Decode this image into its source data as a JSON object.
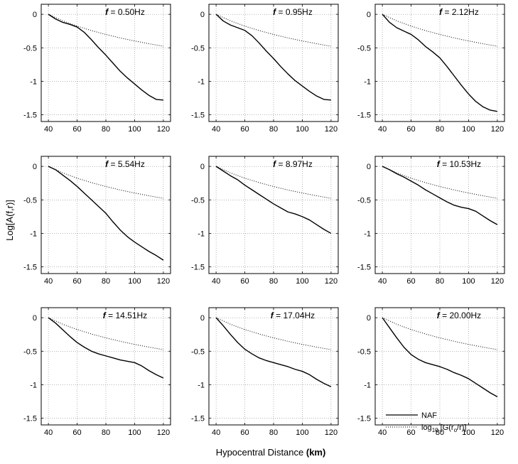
{
  "figure": {
    "ylabel": "Log[A(f,r)]",
    "xlabel_main": "Hypocentral Distance ",
    "xlabel_unit": "(km)",
    "legend": {
      "naf": "NAF",
      "geo_prefix": "log",
      "geo_sub": "10",
      "geo_mid": " [G(r",
      "geo_sub2": "o",
      "geo_suffix": "/r)]"
    }
  },
  "chart_data": {
    "type": "line",
    "xlim": [
      35,
      125
    ],
    "ylim": [
      -1.6,
      0.15
    ],
    "xticks": [
      40,
      60,
      80,
      100,
      120
    ],
    "yticks": [
      0,
      -0.5,
      -1,
      -1.5
    ],
    "ytick_labels": [
      "0",
      "-0.5",
      "-1",
      "-1.5"
    ],
    "grid": true,
    "legend_position": "bottom-right of last panel",
    "geometric_spreading": {
      "x": [
        40,
        50,
        60,
        70,
        80,
        90,
        100,
        110,
        120
      ],
      "y": [
        0,
        -0.097,
        -0.176,
        -0.243,
        -0.301,
        -0.352,
        -0.398,
        -0.439,
        -0.477
      ]
    },
    "panels": [
      {
        "f_label": "0.50Hz",
        "x": [
          40,
          45,
          50,
          55,
          60,
          65,
          70,
          75,
          80,
          85,
          90,
          95,
          100,
          105,
          110,
          115,
          120
        ],
        "y": [
          0,
          -0.07,
          -0.12,
          -0.15,
          -0.19,
          -0.27,
          -0.38,
          -0.5,
          -0.61,
          -0.73,
          -0.85,
          -0.95,
          -1.04,
          -1.13,
          -1.21,
          -1.27,
          -1.28
        ]
      },
      {
        "f_label": "0.95Hz",
        "x": [
          40,
          45,
          50,
          55,
          60,
          65,
          70,
          75,
          80,
          85,
          90,
          95,
          100,
          105,
          110,
          115,
          120
        ],
        "y": [
          0,
          -0.1,
          -0.16,
          -0.2,
          -0.24,
          -0.32,
          -0.43,
          -0.55,
          -0.66,
          -0.78,
          -0.89,
          -0.99,
          -1.07,
          -1.15,
          -1.22,
          -1.27,
          -1.28
        ]
      },
      {
        "f_label": "2.12Hz",
        "x": [
          40,
          45,
          50,
          55,
          60,
          65,
          70,
          75,
          80,
          85,
          90,
          95,
          100,
          105,
          110,
          115,
          120
        ],
        "y": [
          0,
          -0.12,
          -0.2,
          -0.25,
          -0.3,
          -0.38,
          -0.48,
          -0.56,
          -0.65,
          -0.78,
          -0.92,
          -1.06,
          -1.19,
          -1.3,
          -1.38,
          -1.43,
          -1.45
        ]
      },
      {
        "f_label": "5.54Hz",
        "x": [
          40,
          45,
          50,
          55,
          60,
          65,
          70,
          75,
          80,
          85,
          90,
          95,
          100,
          105,
          110,
          115,
          120
        ],
        "y": [
          0,
          -0.05,
          -0.13,
          -0.21,
          -0.3,
          -0.4,
          -0.5,
          -0.6,
          -0.7,
          -0.83,
          -0.95,
          -1.05,
          -1.13,
          -1.2,
          -1.27,
          -1.33,
          -1.4
        ]
      },
      {
        "f_label": "8.97Hz",
        "x": [
          40,
          45,
          50,
          55,
          60,
          65,
          70,
          75,
          80,
          85,
          90,
          95,
          100,
          105,
          110,
          115,
          120
        ],
        "y": [
          0,
          -0.07,
          -0.14,
          -0.2,
          -0.28,
          -0.35,
          -0.42,
          -0.49,
          -0.56,
          -0.62,
          -0.68,
          -0.71,
          -0.75,
          -0.8,
          -0.87,
          -0.94,
          -1.0
        ]
      },
      {
        "f_label": "10.53Hz",
        "x": [
          40,
          45,
          50,
          55,
          60,
          65,
          70,
          75,
          80,
          85,
          90,
          95,
          100,
          105,
          110,
          115,
          120
        ],
        "y": [
          0,
          -0.05,
          -0.11,
          -0.16,
          -0.22,
          -0.28,
          -0.35,
          -0.41,
          -0.47,
          -0.53,
          -0.58,
          -0.61,
          -0.63,
          -0.67,
          -0.74,
          -0.81,
          -0.87
        ]
      },
      {
        "f_label": "14.51Hz",
        "x": [
          40,
          45,
          50,
          55,
          60,
          65,
          70,
          75,
          80,
          85,
          90,
          95,
          100,
          105,
          110,
          115,
          120
        ],
        "y": [
          0,
          -0.08,
          -0.18,
          -0.28,
          -0.37,
          -0.44,
          -0.5,
          -0.54,
          -0.57,
          -0.6,
          -0.63,
          -0.65,
          -0.67,
          -0.72,
          -0.79,
          -0.85,
          -0.9
        ]
      },
      {
        "f_label": "17.04Hz",
        "x": [
          40,
          45,
          50,
          55,
          60,
          65,
          70,
          75,
          80,
          85,
          90,
          95,
          100,
          105,
          110,
          115,
          120
        ],
        "y": [
          0,
          -0.12,
          -0.25,
          -0.37,
          -0.47,
          -0.54,
          -0.6,
          -0.64,
          -0.67,
          -0.7,
          -0.73,
          -0.77,
          -0.8,
          -0.85,
          -0.92,
          -0.98,
          -1.03
        ]
      },
      {
        "f_label": "20.00Hz",
        "x": [
          40,
          45,
          50,
          55,
          60,
          65,
          70,
          75,
          80,
          85,
          90,
          95,
          100,
          105,
          110,
          115,
          120
        ],
        "y": [
          0,
          -0.15,
          -0.3,
          -0.44,
          -0.55,
          -0.62,
          -0.67,
          -0.7,
          -0.73,
          -0.77,
          -0.82,
          -0.86,
          -0.91,
          -0.98,
          -1.05,
          -1.12,
          -1.18
        ]
      }
    ]
  }
}
